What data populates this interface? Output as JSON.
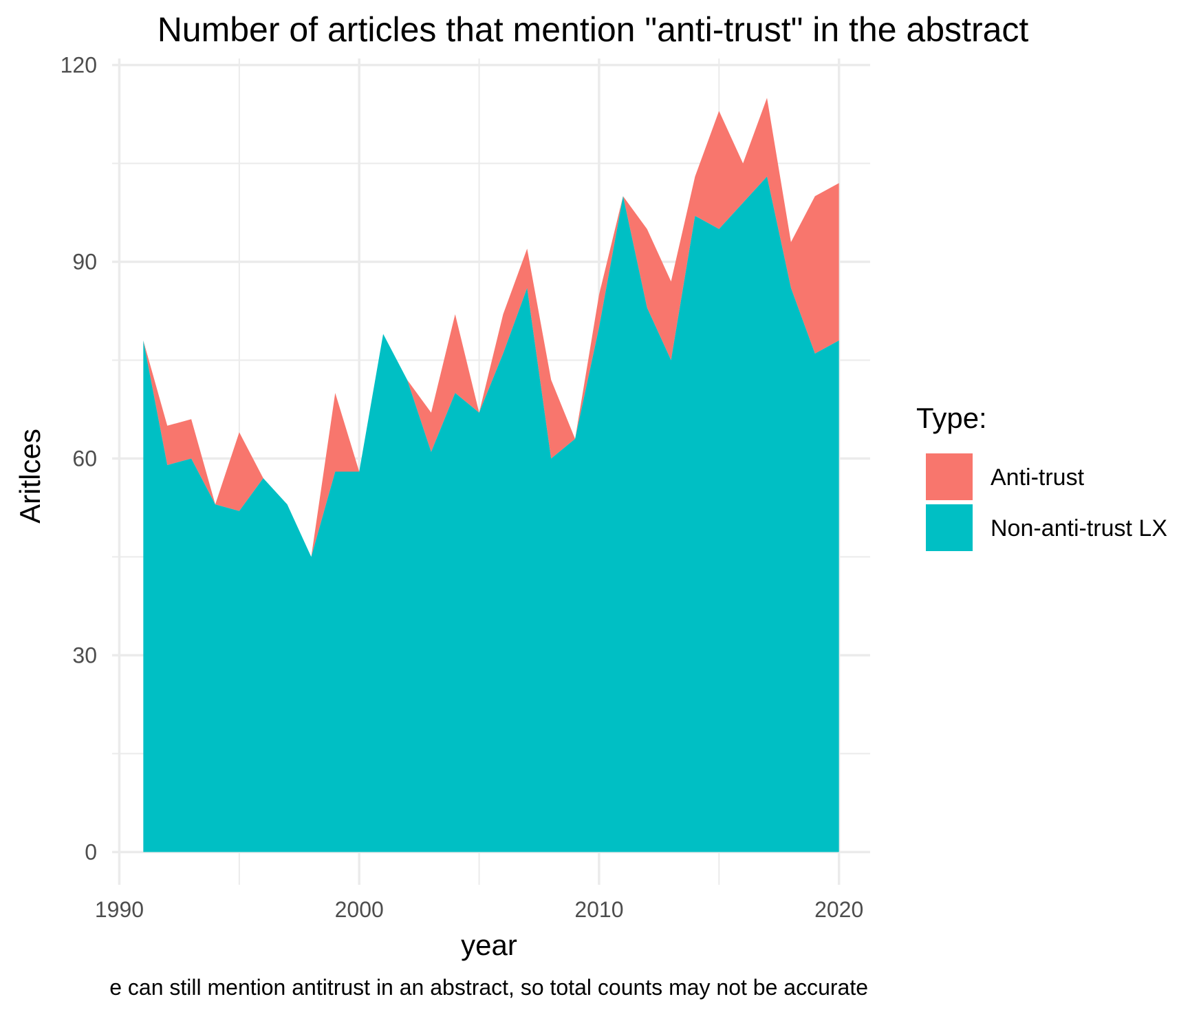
{
  "chart_data": {
    "type": "area",
    "stacked": true,
    "title": "Number of articles that mention \"anti-trust\" in the abstract",
    "xlabel": "year",
    "ylabel": "Aritlces",
    "caption": "e can still mention antitrust in an abstract, so total counts may not be accurate",
    "xlim": [
      1989.7,
      2021.3
    ],
    "ylim": [
      -5,
      121
    ],
    "x_ticks": [
      1990,
      2000,
      2010,
      2020
    ],
    "y_ticks": [
      0,
      30,
      60,
      90,
      120
    ],
    "grid": true,
    "legend": {
      "title": "Type:",
      "position": "right"
    },
    "x": [
      1991,
      1992,
      1993,
      1994,
      1995,
      1996,
      1997,
      1998,
      1999,
      2000,
      2001,
      2002,
      2003,
      2004,
      2005,
      2006,
      2007,
      2008,
      2009,
      2010,
      2011,
      2012,
      2013,
      2014,
      2015,
      2016,
      2017,
      2018,
      2019,
      2020
    ],
    "series": [
      {
        "name": "Non-anti-trust LX",
        "color": "#00BFC4",
        "values": [
          78,
          59,
          60,
          53,
          52,
          57,
          53,
          45,
          58,
          58,
          79,
          72,
          61,
          70,
          67,
          76,
          86,
          60,
          63,
          80,
          100,
          83,
          75,
          97,
          95,
          99,
          103,
          86,
          76,
          78
        ]
      },
      {
        "name": "Anti-trust",
        "color": "#F8766D",
        "values": [
          0,
          6,
          6,
          0,
          12,
          0,
          0,
          0,
          12,
          0,
          0,
          0,
          6,
          12,
          0,
          6,
          6,
          12,
          0,
          5,
          0,
          12,
          12,
          6,
          18,
          6,
          12,
          7,
          24,
          24
        ]
      }
    ]
  }
}
